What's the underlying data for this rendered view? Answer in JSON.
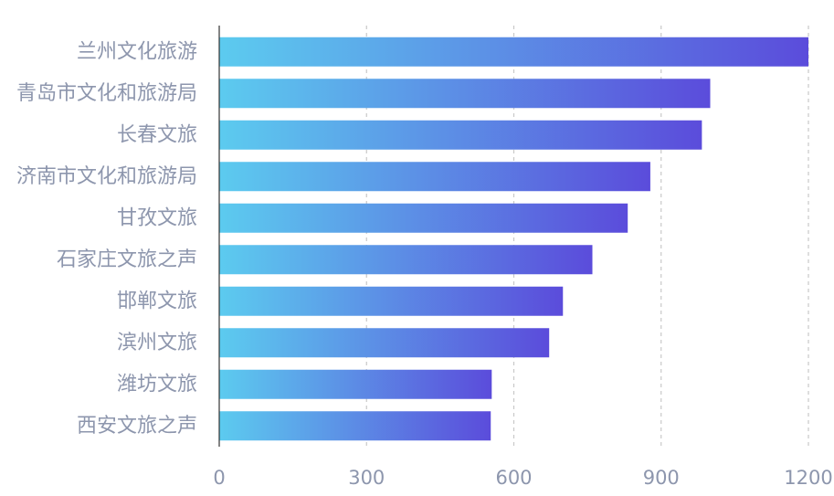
{
  "chart_data": {
    "type": "bar",
    "orientation": "horizontal",
    "categories": [
      "兰州文化旅游",
      "青岛市文化和旅游局",
      "长春文旅",
      "济南市文化和旅游局",
      "甘孜文旅",
      "石家庄文旅之声",
      "邯郸文旅",
      "滨州文旅",
      "潍坊文旅",
      "西安文旅之声"
    ],
    "values": [
      1200,
      1000,
      983,
      878,
      832,
      760,
      700,
      672,
      555,
      553
    ],
    "x_ticks": [
      "0",
      "300",
      "600",
      "900",
      "1200"
    ],
    "xlim": [
      0,
      1200
    ],
    "grid": "vertical dashed",
    "colors": {
      "bar_start": "#5ccbef",
      "bar_end": "#5b4cdb",
      "label": "#8d96ad",
      "axis": "#333333",
      "grid": "#c8c8c8"
    }
  }
}
